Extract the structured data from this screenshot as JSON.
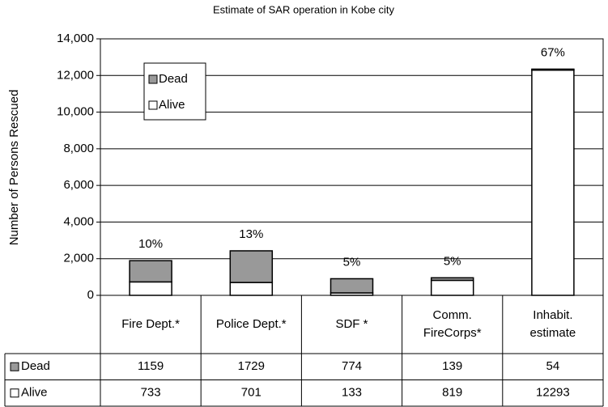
{
  "chart_data": {
    "type": "stacked_bar",
    "title": "Estimate of SAR operation in Kobe city",
    "y_label": "Number of Persons Rescued",
    "categories": [
      "Fire Dept.*",
      "Police Dept.*",
      "SDF *",
      "Comm. FireCorps*",
      "Inhabit. estimate"
    ],
    "series": [
      {
        "name": "Dead",
        "color": "#999999",
        "values": [
          1159,
          1729,
          774,
          139,
          54
        ]
      },
      {
        "name": "Alive",
        "color": "#ffffff",
        "values": [
          733,
          701,
          133,
          819,
          12293
        ]
      }
    ],
    "bar_labels": [
      "10%",
      "13%",
      "5%",
      "5%",
      "67%"
    ],
    "ylim": [
      0,
      14000
    ],
    "yticks": [
      0,
      {
        "value": 2000,
        "label": "2,000"
      },
      {
        "value": 4000,
        "label": "4,000"
      },
      {
        "value": 6000,
        "label": "6,000"
      },
      {
        "value": 8000,
        "label": "8,000"
      },
      {
        "value": 10000,
        "label": "10,000"
      },
      {
        "value": 12000,
        "label": "12,000"
      },
      {
        "value": 14000,
        "label": "14,000"
      }
    ],
    "grid": true
  }
}
